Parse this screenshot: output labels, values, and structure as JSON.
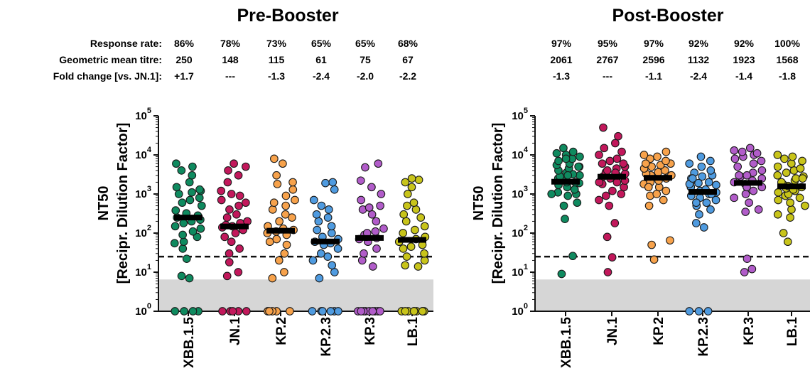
{
  "chart_data": [
    {
      "type": "scatter",
      "title": "Pre-Booster",
      "ylabel": [
        "NT50",
        "[Recipr. Dilution Factor]"
      ],
      "yscale": "log",
      "ylim": [
        1,
        100000
      ],
      "threshold_line": 25,
      "detection_limit_band": [
        1,
        6.5
      ],
      "stat_labels": [
        "Response rate:",
        "Geometric mean titre:",
        "Fold change [vs. JN.1]:"
      ],
      "categories": [
        "XBB.1.5",
        "JN.1",
        "KP.2",
        "KP.2.3",
        "KP.3",
        "LB.1"
      ],
      "colors": [
        "#0f8a5f",
        "#c2185b",
        "#f7a24b",
        "#4f9be0",
        "#b15cc9",
        "#c8c41a"
      ],
      "response_rate": [
        "86%",
        "78%",
        "73%",
        "65%",
        "65%",
        "68%"
      ],
      "geometric_mean_titre": [
        "250",
        "148",
        "115",
        "61",
        "75",
        "67"
      ],
      "fold_change": [
        "+1.7",
        "---",
        "-1.3",
        "-2.4",
        "-2.0",
        "-2.2"
      ],
      "medians": [
        250,
        148,
        115,
        61,
        75,
        67
      ],
      "series": [
        {
          "values": [
            1,
            1,
            1,
            1,
            7,
            8,
            22,
            40,
            55,
            60,
            80,
            90,
            110,
            130,
            150,
            180,
            200,
            220,
            250,
            280,
            320,
            380,
            500,
            600,
            700,
            800,
            1000,
            1100,
            1200,
            1300,
            1500,
            2000,
            3000,
            4000,
            5000,
            6000
          ]
        },
        {
          "values": [
            1,
            1,
            1,
            1,
            1,
            8,
            10,
            18,
            30,
            40,
            60,
            80,
            100,
            120,
            140,
            150,
            160,
            180,
            200,
            250,
            300,
            400,
            500,
            600,
            700,
            900,
            1000,
            1200,
            2000,
            3000,
            4000,
            5000,
            6000
          ]
        },
        {
          "values": [
            1,
            1,
            1,
            1,
            1,
            7,
            10,
            20,
            30,
            50,
            60,
            70,
            90,
            100,
            110,
            120,
            130,
            150,
            200,
            250,
            300,
            400,
            500,
            600,
            700,
            900,
            1300,
            1800,
            2000,
            3000,
            6000,
            8000
          ]
        },
        {
          "values": [
            1,
            1,
            1,
            1,
            1,
            1,
            7,
            10,
            15,
            20,
            25,
            30,
            40,
            50,
            55,
            60,
            70,
            80,
            100,
            120,
            150,
            200,
            250,
            300,
            400,
            500,
            700,
            1300,
            1900,
            2000
          ]
        },
        {
          "values": [
            1,
            1,
            1,
            1,
            1,
            1,
            1,
            1,
            1,
            14,
            20,
            30,
            40,
            60,
            70,
            75,
            80,
            90,
            100,
            110,
            130,
            200,
            300,
            400,
            450,
            500,
            700,
            1000,
            1500,
            2200,
            4800,
            6000
          ]
        },
        {
          "values": [
            1,
            1,
            1,
            1,
            1,
            1,
            1,
            1,
            1,
            14,
            15,
            20,
            25,
            30,
            40,
            45,
            50,
            60,
            70,
            80,
            100,
            120,
            150,
            200,
            250,
            300,
            400,
            500,
            600,
            1000,
            1500,
            2000,
            2300,
            2500
          ]
        }
      ]
    },
    {
      "type": "scatter",
      "title": "Post-Booster",
      "ylabel": [
        "NT50",
        "[Recipr. Dilution Factor]"
      ],
      "yscale": "log",
      "ylim": [
        1,
        100000
      ],
      "threshold_line": 25,
      "detection_limit_band": [
        1,
        6.5
      ],
      "categories": [
        "XBB.1.5",
        "JN.1",
        "KP.2",
        "KP.2.3",
        "KP.3",
        "LB.1"
      ],
      "colors": [
        "#0f8a5f",
        "#c2185b",
        "#f7a24b",
        "#4f9be0",
        "#b15cc9",
        "#c8c41a"
      ],
      "response_rate": [
        "97%",
        "95%",
        "97%",
        "92%",
        "92%",
        "100%"
      ],
      "geometric_mean_titre": [
        "2061",
        "2767",
        "2596",
        "1132",
        "1923",
        "1568"
      ],
      "fold_change": [
        "-1.3",
        "---",
        "-1.1",
        "-2.4",
        "-1.4",
        "-1.8"
      ],
      "medians": [
        2061,
        2767,
        2596,
        1132,
        1923,
        1568
      ],
      "series": [
        {
          "values": [
            9,
            26,
            230,
            500,
            600,
            900,
            1000,
            1100,
            1300,
            1500,
            1700,
            1900,
            2000,
            2200,
            2500,
            2800,
            3000,
            3200,
            3500,
            4000,
            4500,
            5000,
            5500,
            6000,
            7000,
            8000,
            9000,
            10000,
            11000,
            12000,
            15000,
            1000,
            2000,
            3000,
            5000,
            8000
          ]
        },
        {
          "values": [
            10,
            24,
            80,
            180,
            500,
            700,
            900,
            1000,
            1200,
            1500,
            1800,
            2000,
            2200,
            2500,
            2800,
            3000,
            3300,
            3600,
            4000,
            4500,
            5000,
            6000,
            7000,
            8000,
            10000,
            12000,
            15000,
            20000,
            30000,
            50000,
            2000,
            3500,
            6000
          ]
        },
        {
          "values": [
            21,
            50,
            65,
            500,
            700,
            900,
            1000,
            1200,
            1500,
            1800,
            2000,
            2200,
            2500,
            2800,
            3000,
            3300,
            3600,
            4000,
            4500,
            5000,
            5500,
            6000,
            7000,
            8000,
            9000,
            10000,
            12000,
            1500,
            3000,
            6000
          ]
        },
        {
          "values": [
            1,
            1,
            1,
            140,
            180,
            300,
            400,
            500,
            600,
            700,
            800,
            900,
            1000,
            1100,
            1200,
            1300,
            1500,
            1700,
            1900,
            2000,
            2200,
            2500,
            2800,
            3000,
            3500,
            4000,
            5000,
            6000,
            7000,
            9000,
            600,
            1000,
            1800,
            2500
          ]
        },
        {
          "values": [
            10,
            12,
            22,
            350,
            400,
            600,
            800,
            1000,
            1200,
            1500,
            1800,
            2000,
            2200,
            2500,
            2800,
            3000,
            3500,
            4000,
            5000,
            6000,
            7000,
            8000,
            9000,
            10000,
            11000,
            12000,
            13000,
            15000,
            1500,
            3000
          ]
        },
        {
          "values": [
            60,
            100,
            250,
            300,
            400,
            500,
            600,
            700,
            800,
            900,
            1000,
            1100,
            1200,
            1400,
            1500,
            1600,
            1800,
            2000,
            2200,
            2500,
            2800,
            3000,
            3500,
            4000,
            4500,
            5000,
            6000,
            7000,
            8000,
            9000,
            10000,
            1300,
            2500
          ]
        }
      ]
    }
  ]
}
